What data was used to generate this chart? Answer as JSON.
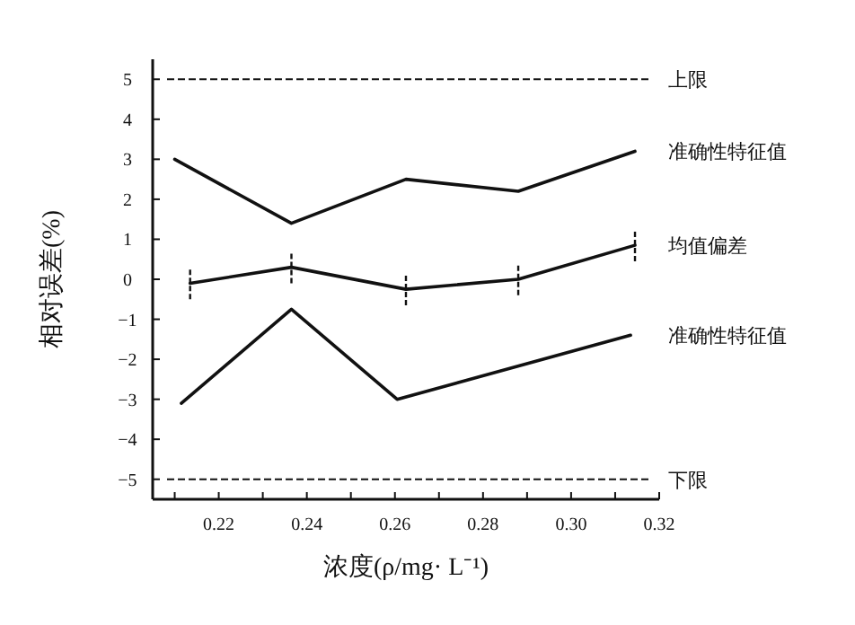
{
  "chart_data": {
    "type": "line",
    "xlabel": "浓度(ρ/mg· L⁻¹)",
    "ylabel": "相对误差(%)",
    "xlim": [
      0.205,
      0.32
    ],
    "ylim": [
      -5.5,
      5.5
    ],
    "xticks": [
      {
        "value": 0.21,
        "label": null
      },
      {
        "value": 0.22,
        "label": "0.22"
      },
      {
        "value": 0.23,
        "label": null
      },
      {
        "value": 0.24,
        "label": "0.24"
      },
      {
        "value": 0.25,
        "label": null
      },
      {
        "value": 0.26,
        "label": "0.26"
      },
      {
        "value": 0.27,
        "label": null
      },
      {
        "value": 0.28,
        "label": "0.28"
      },
      {
        "value": 0.29,
        "label": null
      },
      {
        "value": 0.3,
        "label": "0.30"
      },
      {
        "value": 0.31,
        "label": null
      },
      {
        "value": 0.32,
        "label": "0.32"
      }
    ],
    "yticks": [
      -5,
      -4,
      -3,
      -2,
      -1,
      0,
      1,
      2,
      3,
      4,
      5
    ],
    "grid": false,
    "series": [
      {
        "name": "准确性特征值",
        "color": "#111111",
        "x": [
          0.21,
          0.2365,
          0.2625,
          0.288,
          0.3145
        ],
        "values": [
          3.0,
          1.4,
          2.5,
          2.2,
          3.2
        ]
      },
      {
        "name": "均值偏差",
        "color": "#111111",
        "x": [
          0.2135,
          0.2365,
          0.2625,
          0.288,
          0.3145
        ],
        "values": [
          -0.1,
          0.3,
          -0.25,
          0.0,
          0.85
        ],
        "errors": [
          0.4,
          0.4,
          0.4,
          0.4,
          0.4
        ]
      },
      {
        "name": "准确性特征值",
        "color": "#111111",
        "x": [
          0.2115,
          0.2365,
          0.2605,
          0.3135
        ],
        "values": [
          -3.1,
          -0.75,
          -3.0,
          -1.4
        ]
      }
    ],
    "ref_lines": [
      {
        "axis": "y",
        "value": 5,
        "label": "上限",
        "color": "#111111",
        "line_style": "dashed"
      },
      {
        "axis": "y",
        "value": -5,
        "label": "下限",
        "color": "#111111",
        "line_style": "dashed"
      }
    ]
  }
}
